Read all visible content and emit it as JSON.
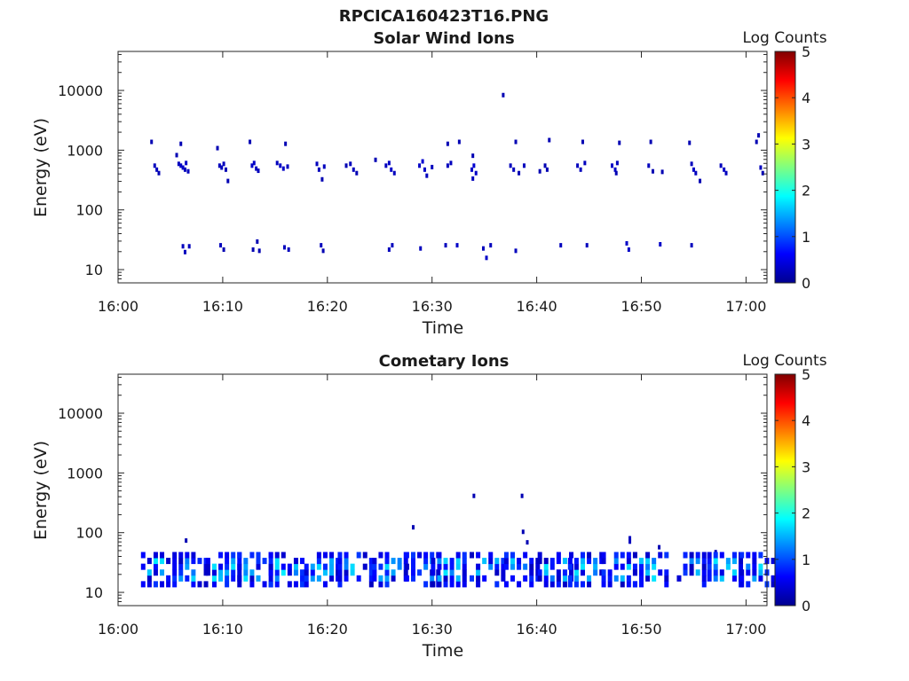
{
  "figure": {
    "title": "RPCICA160423T16.PNG"
  },
  "colorbar": {
    "label": "Log Counts",
    "ticks": [
      0,
      1,
      2,
      3,
      4,
      5
    ],
    "range": [
      0,
      5
    ],
    "colormap": "jet"
  },
  "chart_data": [
    {
      "type": "heatmap",
      "title": "Solar Wind Ions",
      "xlabel": "Time",
      "ylabel": "Energy (eV)",
      "yscale": "log",
      "ylim": [
        6,
        45000
      ],
      "xlim": [
        "16:00",
        "17:02"
      ],
      "xticks": [
        "16:00",
        "16:10",
        "16:20",
        "16:30",
        "16:40",
        "16:50",
        "17:00"
      ],
      "yticks": [
        10,
        100,
        1000,
        10000
      ],
      "colorbar_label": "Log Counts",
      "clim": [
        0,
        5
      ],
      "points_format": [
        "time_min",
        "energy_eV",
        "log_counts"
      ],
      "points": [
        [
          3.2,
          1400,
          0.3
        ],
        [
          3.5,
          560,
          0.4
        ],
        [
          3.7,
          480,
          0.4
        ],
        [
          3.9,
          420,
          0.3
        ],
        [
          5.6,
          840,
          0.3
        ],
        [
          5.8,
          600,
          0.4
        ],
        [
          6.0,
          560,
          0.5
        ],
        [
          6.2,
          520,
          0.5
        ],
        [
          6.4,
          480,
          0.4
        ],
        [
          6.5,
          620,
          0.5
        ],
        [
          6.7,
          450,
          0.4
        ],
        [
          6.0,
          1300,
          0.3
        ],
        [
          9.5,
          1100,
          0.3
        ],
        [
          9.7,
          560,
          0.4
        ],
        [
          9.9,
          520,
          0.4
        ],
        [
          10.1,
          600,
          0.4
        ],
        [
          10.3,
          480,
          0.3
        ],
        [
          10.5,
          310,
          0.3
        ],
        [
          12.6,
          1400,
          0.3
        ],
        [
          12.8,
          560,
          0.5
        ],
        [
          13.0,
          620,
          0.5
        ],
        [
          13.2,
          500,
          0.4
        ],
        [
          13.4,
          460,
          0.4
        ],
        [
          15.2,
          620,
          0.4
        ],
        [
          15.5,
          560,
          0.5
        ],
        [
          15.8,
          500,
          0.5
        ],
        [
          16.0,
          1300,
          0.3
        ],
        [
          16.2,
          540,
          0.4
        ],
        [
          19.0,
          600,
          0.4
        ],
        [
          19.2,
          480,
          0.4
        ],
        [
          19.5,
          330,
          0.3
        ],
        [
          19.7,
          540,
          0.4
        ],
        [
          21.8,
          560,
          0.3
        ],
        [
          22.2,
          600,
          0.4
        ],
        [
          22.5,
          480,
          0.4
        ],
        [
          22.8,
          420,
          0.3
        ],
        [
          24.6,
          700,
          0.3
        ],
        [
          25.6,
          560,
          0.4
        ],
        [
          25.9,
          620,
          0.5
        ],
        [
          26.1,
          480,
          0.5
        ],
        [
          26.4,
          420,
          0.4
        ],
        [
          28.8,
          560,
          0.5
        ],
        [
          29.1,
          660,
          0.6
        ],
        [
          29.3,
          480,
          0.5
        ],
        [
          29.5,
          380,
          0.4
        ],
        [
          30.0,
          530,
          0.4
        ],
        [
          31.5,
          560,
          0.4
        ],
        [
          31.8,
          620,
          0.4
        ],
        [
          31.5,
          1300,
          0.3
        ],
        [
          32.6,
          1400,
          0.3
        ],
        [
          33.8,
          480,
          0.5
        ],
        [
          34.0,
          560,
          0.6
        ],
        [
          34.2,
          420,
          0.5
        ],
        [
          33.9,
          340,
          0.4
        ],
        [
          33.9,
          820,
          0.3
        ],
        [
          36.8,
          8500,
          0.3
        ],
        [
          37.5,
          560,
          0.4
        ],
        [
          37.8,
          480,
          0.4
        ],
        [
          38.0,
          1400,
          0.3
        ],
        [
          38.3,
          420,
          0.3
        ],
        [
          38.8,
          560,
          0.4
        ],
        [
          40.3,
          450,
          0.3
        ],
        [
          40.8,
          560,
          0.3
        ],
        [
          41.2,
          1500,
          0.3
        ],
        [
          41.0,
          480,
          0.3
        ],
        [
          43.9,
          560,
          0.4
        ],
        [
          44.2,
          480,
          0.4
        ],
        [
          44.4,
          1400,
          0.3
        ],
        [
          44.6,
          620,
          0.4
        ],
        [
          47.2,
          560,
          0.5
        ],
        [
          47.5,
          480,
          0.5
        ],
        [
          47.7,
          620,
          0.4
        ],
        [
          47.9,
          1350,
          0.3
        ],
        [
          47.6,
          420,
          0.3
        ],
        [
          50.7,
          560,
          0.4
        ],
        [
          50.9,
          1400,
          0.3
        ],
        [
          51.1,
          450,
          0.3
        ],
        [
          52.0,
          440,
          0.3
        ],
        [
          54.6,
          1350,
          0.3
        ],
        [
          54.8,
          600,
          0.4
        ],
        [
          55.0,
          480,
          0.5
        ],
        [
          55.2,
          420,
          0.4
        ],
        [
          55.6,
          310,
          0.3
        ],
        [
          57.6,
          560,
          0.4
        ],
        [
          57.9,
          480,
          0.5
        ],
        [
          58.1,
          420,
          0.4
        ],
        [
          61.0,
          1400,
          0.3
        ],
        [
          61.2,
          1800,
          0.3
        ],
        [
          61.4,
          520,
          0.4
        ],
        [
          61.6,
          420,
          0.3
        ],
        [
          6.2,
          25,
          0.4
        ],
        [
          6.4,
          20,
          0.4
        ],
        [
          6.8,
          25,
          0.4
        ],
        [
          9.8,
          26,
          0.4
        ],
        [
          10.1,
          22,
          0.3
        ],
        [
          12.9,
          22,
          0.3
        ],
        [
          13.3,
          30,
          0.3
        ],
        [
          13.5,
          21,
          0.3
        ],
        [
          15.9,
          24,
          0.4
        ],
        [
          16.3,
          22,
          0.4
        ],
        [
          19.4,
          26,
          0.4
        ],
        [
          19.6,
          21,
          0.3
        ],
        [
          25.9,
          22,
          0.4
        ],
        [
          26.2,
          26,
          0.4
        ],
        [
          28.9,
          23,
          0.4
        ],
        [
          31.3,
          26,
          0.4
        ],
        [
          32.4,
          26,
          0.5
        ],
        [
          34.9,
          23,
          0.4
        ],
        [
          35.2,
          16,
          0.5
        ],
        [
          35.6,
          26,
          0.4
        ],
        [
          38.0,
          21,
          0.4
        ],
        [
          42.3,
          26,
          0.4
        ],
        [
          44.8,
          26,
          0.4
        ],
        [
          48.6,
          28,
          0.5
        ],
        [
          48.8,
          22,
          0.5
        ],
        [
          51.8,
          27,
          0.5
        ],
        [
          54.8,
          26,
          0.4
        ]
      ]
    },
    {
      "type": "heatmap",
      "title": "Cometary Ions",
      "xlabel": "Time",
      "ylabel": "Energy (eV)",
      "yscale": "log",
      "ylim": [
        6,
        45000
      ],
      "xlim": [
        "16:00",
        "17:02"
      ],
      "xticks": [
        "16:00",
        "16:10",
        "16:20",
        "16:30",
        "16:40",
        "16:50",
        "17:00"
      ],
      "yticks": [
        10,
        100,
        1000,
        10000
      ],
      "colorbar_label": "Log Counts",
      "clim": [
        0,
        5
      ],
      "points_format": [
        "time_min",
        "energy_eV",
        "log_counts"
      ],
      "points": [
        [
          6.5,
          75,
          0.3
        ],
        [
          28.2,
          125,
          0.3
        ],
        [
          34.0,
          420,
          0.3
        ],
        [
          38.6,
          420,
          0.3
        ],
        [
          38.7,
          105,
          0.3
        ],
        [
          39.1,
          70,
          0.3
        ],
        [
          48.9,
          82,
          0.4
        ],
        [
          48.9,
          72,
          0.4
        ],
        [
          51.7,
          58,
          0.3
        ],
        [
          57.1,
          48,
          0.3
        ]
      ],
      "bursts": [
        {
          "t": 3.6,
          "n": 3
        },
        {
          "t": 6.6,
          "n": 4
        },
        {
          "t": 9.8,
          "n": 4
        },
        {
          "t": 12.8,
          "n": 4
        },
        {
          "t": 15.8,
          "n": 4
        },
        {
          "t": 19.2,
          "n": 4
        },
        {
          "t": 22.4,
          "n": 4
        },
        {
          "t": 25.7,
          "n": 4
        },
        {
          "t": 28.8,
          "n": 4
        },
        {
          "t": 31.3,
          "n": 4
        },
        {
          "t": 35.0,
          "n": 4
        },
        {
          "t": 38.3,
          "n": 4
        },
        {
          "t": 41.5,
          "n": 4
        },
        {
          "t": 44.4,
          "n": 4
        },
        {
          "t": 47.6,
          "n": 4
        },
        {
          "t": 50.6,
          "n": 4
        },
        {
          "t": 54.8,
          "n": 3
        },
        {
          "t": 57.7,
          "n": 4
        },
        {
          "t": 60.8,
          "n": 4
        }
      ],
      "bursts_energy_range_eV": [
        13,
        40
      ]
    }
  ]
}
